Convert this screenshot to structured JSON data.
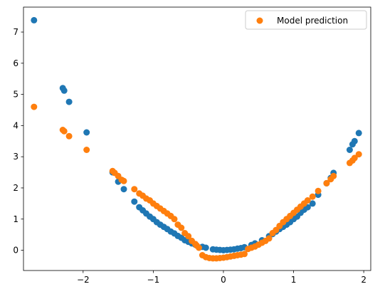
{
  "chart_data": {
    "type": "scatter",
    "title": "",
    "xlabel": "",
    "ylabel": "",
    "xlim": [
      -2.85,
      2.1
    ],
    "ylim": [
      -0.65,
      7.8
    ],
    "xticks": [
      -2,
      -1,
      0,
      1,
      2
    ],
    "yticks": [
      0,
      1,
      2,
      3,
      4,
      5,
      6,
      7
    ],
    "grid": false,
    "legend": {
      "placement": "top-right",
      "entries": [
        "Model prediction"
      ]
    },
    "series": [
      {
        "color": "#1f77b4",
        "points": [
          [
            -2.7,
            7.38
          ],
          [
            -2.29,
            5.2
          ],
          [
            -2.27,
            5.12
          ],
          [
            -2.2,
            4.76
          ],
          [
            -1.95,
            3.78
          ],
          [
            -1.58,
            2.5
          ],
          [
            -1.5,
            2.2
          ],
          [
            -1.42,
            1.96
          ],
          [
            -1.27,
            1.56
          ],
          [
            -1.2,
            1.38
          ],
          [
            -1.15,
            1.28
          ],
          [
            -1.1,
            1.18
          ],
          [
            -1.05,
            1.08
          ],
          [
            -1.0,
            1.0
          ],
          [
            -0.95,
            0.9
          ],
          [
            -0.9,
            0.82
          ],
          [
            -0.85,
            0.75
          ],
          [
            -0.8,
            0.68
          ],
          [
            -0.75,
            0.6
          ],
          [
            -0.7,
            0.54
          ],
          [
            -0.65,
            0.46
          ],
          [
            -0.6,
            0.4
          ],
          [
            -0.55,
            0.32
          ],
          [
            -0.5,
            0.27
          ],
          [
            -0.45,
            0.22
          ],
          [
            -0.4,
            0.18
          ],
          [
            -0.3,
            0.11
          ],
          [
            -0.25,
            0.08
          ],
          [
            -0.15,
            0.03
          ],
          [
            -0.1,
            0.02
          ],
          [
            -0.05,
            0.01
          ],
          [
            0.0,
            0.0
          ],
          [
            0.05,
            0.01
          ],
          [
            0.1,
            0.02
          ],
          [
            0.15,
            0.03
          ],
          [
            0.2,
            0.05
          ],
          [
            0.25,
            0.07
          ],
          [
            0.3,
            0.1
          ],
          [
            0.4,
            0.17
          ],
          [
            0.45,
            0.22
          ],
          [
            0.55,
            0.32
          ],
          [
            0.65,
            0.45
          ],
          [
            0.7,
            0.52
          ],
          [
            0.75,
            0.6
          ],
          [
            0.8,
            0.68
          ],
          [
            0.85,
            0.75
          ],
          [
            0.9,
            0.82
          ],
          [
            0.95,
            0.9
          ],
          [
            1.0,
            1.0
          ],
          [
            1.05,
            1.08
          ],
          [
            1.1,
            1.2
          ],
          [
            1.15,
            1.3
          ],
          [
            1.2,
            1.38
          ],
          [
            1.27,
            1.5
          ],
          [
            1.35,
            1.78
          ],
          [
            1.47,
            2.15
          ],
          [
            1.53,
            2.32
          ],
          [
            1.57,
            2.48
          ],
          [
            1.8,
            3.22
          ],
          [
            1.84,
            3.4
          ],
          [
            1.87,
            3.5
          ],
          [
            1.93,
            3.76
          ]
        ]
      },
      {
        "name": "Model prediction",
        "color": "#ff7f0e",
        "points": [
          [
            -2.7,
            4.6
          ],
          [
            -2.29,
            3.86
          ],
          [
            -2.27,
            3.82
          ],
          [
            -2.2,
            3.66
          ],
          [
            -1.95,
            3.22
          ],
          [
            -1.58,
            2.54
          ],
          [
            -1.55,
            2.48
          ],
          [
            -1.5,
            2.38
          ],
          [
            -1.45,
            2.26
          ],
          [
            -1.42,
            2.22
          ],
          [
            -1.27,
            1.96
          ],
          [
            -1.2,
            1.82
          ],
          [
            -1.15,
            1.75
          ],
          [
            -1.1,
            1.66
          ],
          [
            -1.05,
            1.6
          ],
          [
            -1.0,
            1.5
          ],
          [
            -0.95,
            1.42
          ],
          [
            -0.9,
            1.34
          ],
          [
            -0.85,
            1.26
          ],
          [
            -0.8,
            1.18
          ],
          [
            -0.75,
            1.1
          ],
          [
            -0.7,
            1.0
          ],
          [
            -0.65,
            0.82
          ],
          [
            -0.6,
            0.72
          ],
          [
            -0.55,
            0.55
          ],
          [
            -0.5,
            0.45
          ],
          [
            -0.45,
            0.3
          ],
          [
            -0.4,
            0.2
          ],
          [
            -0.38,
            0.15
          ],
          [
            -0.35,
            0.08
          ],
          [
            -0.3,
            -0.16
          ],
          [
            -0.25,
            -0.22
          ],
          [
            -0.2,
            -0.25
          ],
          [
            -0.15,
            -0.26
          ],
          [
            -0.1,
            -0.26
          ],
          [
            -0.05,
            -0.25
          ],
          [
            0.0,
            -0.24
          ],
          [
            0.05,
            -0.22
          ],
          [
            0.1,
            -0.2
          ],
          [
            0.15,
            -0.18
          ],
          [
            0.2,
            -0.16
          ],
          [
            0.25,
            -0.14
          ],
          [
            0.3,
            -0.12
          ],
          [
            0.35,
            0.04
          ],
          [
            0.4,
            0.08
          ],
          [
            0.45,
            0.12
          ],
          [
            0.5,
            0.18
          ],
          [
            0.55,
            0.24
          ],
          [
            0.6,
            0.3
          ],
          [
            0.65,
            0.38
          ],
          [
            0.7,
            0.55
          ],
          [
            0.75,
            0.65
          ],
          [
            0.8,
            0.78
          ],
          [
            0.85,
            0.9
          ],
          [
            0.9,
            1.0
          ],
          [
            0.95,
            1.1
          ],
          [
            1.0,
            1.2
          ],
          [
            1.05,
            1.3
          ],
          [
            1.1,
            1.4
          ],
          [
            1.15,
            1.5
          ],
          [
            1.2,
            1.6
          ],
          [
            1.27,
            1.72
          ],
          [
            1.35,
            1.9
          ],
          [
            1.47,
            2.15
          ],
          [
            1.53,
            2.28
          ],
          [
            1.57,
            2.38
          ],
          [
            1.8,
            2.8
          ],
          [
            1.84,
            2.88
          ],
          [
            1.87,
            2.96
          ],
          [
            1.93,
            3.08
          ]
        ]
      }
    ]
  }
}
